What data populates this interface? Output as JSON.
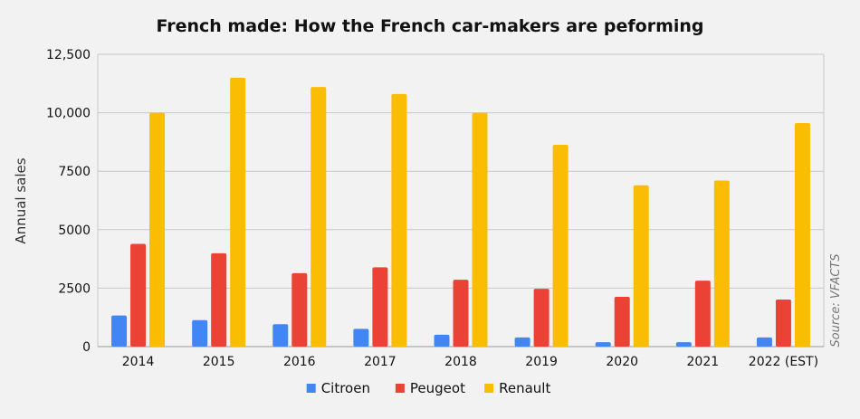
{
  "chart_data": {
    "type": "bar",
    "title": "French made: How the French car-makers are peforming",
    "ylabel": "Annual sales",
    "xlabel": "",
    "source": "Source: VFACTS",
    "categories": [
      "2014",
      "2015",
      "2016",
      "2017",
      "2018",
      "2019",
      "2020",
      "2021",
      "2022 (EST)"
    ],
    "series": [
      {
        "name": "Citroen",
        "color": "#4285f4",
        "values": [
          1330,
          1130,
          960,
          760,
          510,
          390,
          190,
          190,
          390
        ]
      },
      {
        "name": "Peugeot",
        "color": "#ea4335",
        "values": [
          4390,
          3990,
          3140,
          3390,
          2860,
          2470,
          2130,
          2820,
          2010
        ]
      },
      {
        "name": "Renault",
        "color": "#fbbc04",
        "values": [
          10000,
          11500,
          11100,
          10800,
          10000,
          8630,
          6900,
          7100,
          9560
        ]
      }
    ],
    "ylim": [
      0,
      12500
    ],
    "yticks": [
      0,
      2500,
      5000,
      7500,
      10000,
      12500
    ],
    "ytick_labels": [
      "0",
      "2500",
      "5000",
      "7500",
      "10,000",
      "12,500"
    ],
    "grid": true,
    "legend": "bottom"
  }
}
